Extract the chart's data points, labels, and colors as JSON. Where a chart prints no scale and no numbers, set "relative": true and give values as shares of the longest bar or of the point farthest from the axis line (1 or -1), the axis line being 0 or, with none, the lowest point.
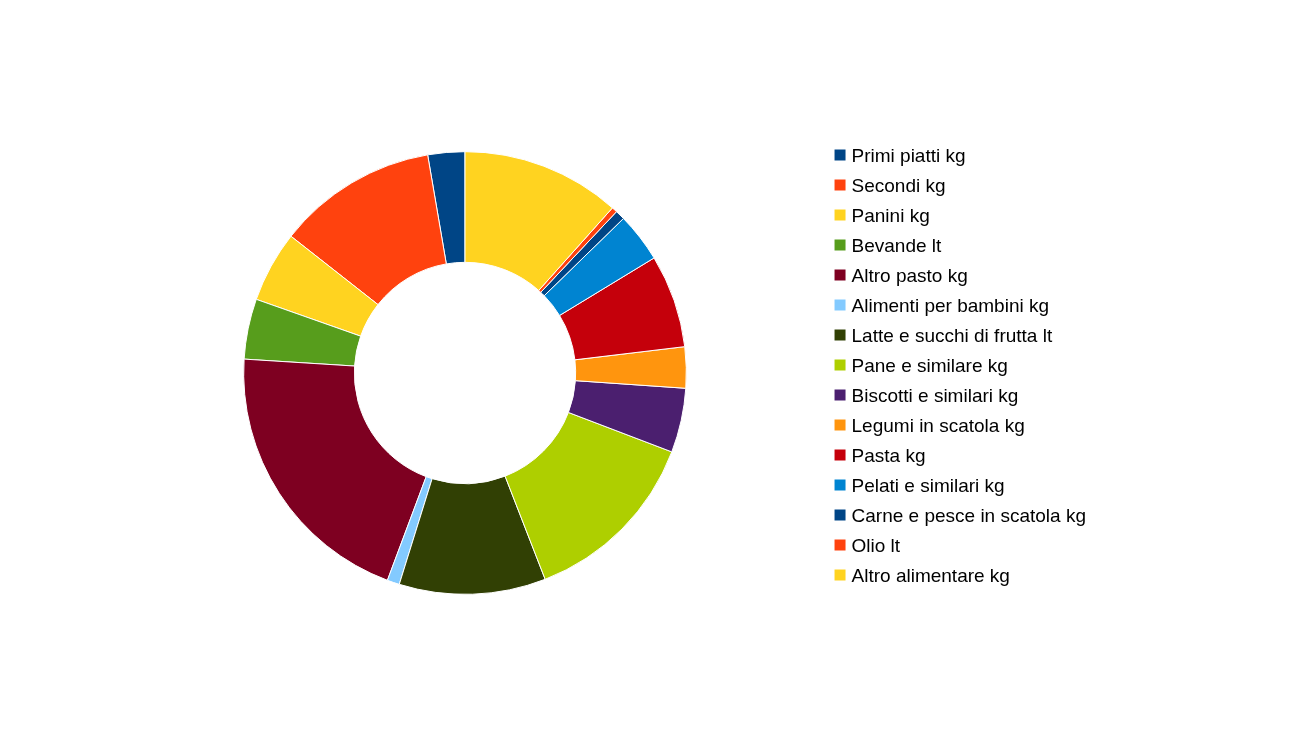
{
  "chart_data": {
    "type": "donut",
    "relative": true,
    "legend": "right",
    "categories": [
      "Primi piatti kg",
      "Secondi kg",
      "Panini kg",
      "Bevande lt",
      "Altro pasto kg",
      "Alimenti per bambini kg",
      "Latte e succhi di frutta lt",
      "Pane e similare kg",
      "Biscotti e similari kg",
      "Legumi in scatola kg",
      "Pasta kg",
      "Pelati e similari kg",
      "Carne e pesce in scatola kg",
      "Olio lt",
      "Altro alimentare kg"
    ],
    "values": [
      2.7,
      11.7,
      5.2,
      4.4,
      20.3,
      0.9,
      10.7,
      13.3,
      4.7,
      3,
      6.8,
      3.6,
      0.7,
      0.4,
      11.6
    ],
    "colors": [
      "#004586",
      "#ff420e",
      "#ffd320",
      "#579d1c",
      "#7e0021",
      "#83caff",
      "#314004",
      "#aecf00",
      "#4b1f6f",
      "#ff950e",
      "#c5000b",
      "#0084d1",
      "#004586",
      "#ff420e",
      "#ffd320"
    ]
  }
}
